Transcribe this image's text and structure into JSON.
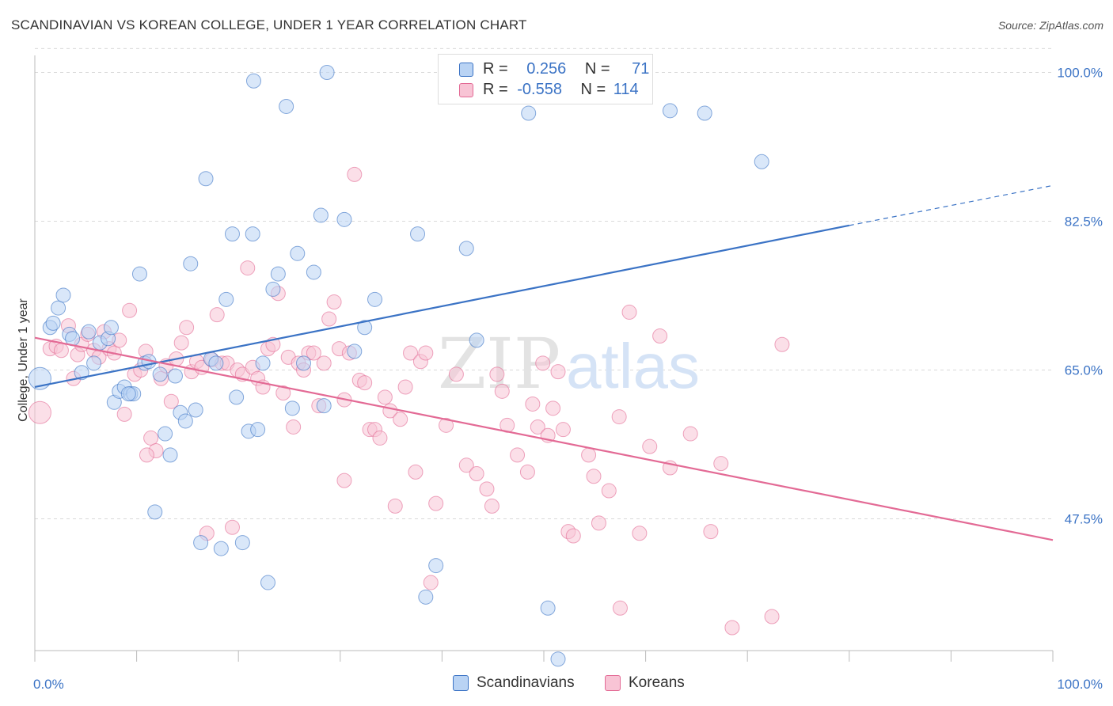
{
  "title": "SCANDINAVIAN VS KOREAN COLLEGE, UNDER 1 YEAR CORRELATION CHART",
  "source": "Source: ZipAtlas.com",
  "watermark": {
    "zip": "ZIP",
    "atlas": "atlas"
  },
  "colors": {
    "blue": "#3b73c5",
    "blue_fill": "#b9d3f4",
    "pink": "#e36a95",
    "pink_fill": "#f8c4d5",
    "grid": "#d9d9d9"
  },
  "legend": {
    "rows": [
      {
        "r_label": "R =",
        "r_value": "0.256",
        "n_label": "N =",
        "n_value": "71"
      },
      {
        "r_label": "R =",
        "r_value": "-0.558",
        "n_label": "N =",
        "n_value": "114"
      }
    ]
  },
  "bottom_legend": {
    "scandinavians": "Scandinavians",
    "koreans": "Koreans"
  },
  "chart_data": {
    "type": "scatter",
    "title": "SCANDINAVIAN VS KOREAN COLLEGE, UNDER 1 YEAR CORRELATION CHART",
    "xlabel": "",
    "ylabel": "College, Under 1 year",
    "xlim": [
      0,
      100
    ],
    "ylim": [
      32,
      102
    ],
    "x_tick_labels": [
      "0.0%",
      "100.0%"
    ],
    "y_ticks": [
      47.5,
      65.0,
      82.5,
      100.0
    ],
    "y_tick_labels": [
      "47.5%",
      "65.0%",
      "82.5%",
      "100.0%"
    ],
    "grid": true,
    "legend_position": "top-center",
    "series": [
      {
        "name": "Scandinavians",
        "r": 0.256,
        "n": 71,
        "trend": {
          "x": [
            0,
            80
          ],
          "y": [
            63.0,
            82.0
          ],
          "dashed_extension": {
            "x": [
              80,
              100
            ],
            "y": [
              82.0,
              86.7
            ]
          }
        },
        "points": [
          [
            0.5,
            64.0
          ],
          [
            1.5,
            70.0
          ],
          [
            1.8,
            70.5
          ],
          [
            2.3,
            72.3
          ],
          [
            2.8,
            73.8
          ],
          [
            3.4,
            69.2
          ],
          [
            3.7,
            68.7
          ],
          [
            4.6,
            64.7
          ],
          [
            5.3,
            69.5
          ],
          [
            5.8,
            65.8
          ],
          [
            6.4,
            68.2
          ],
          [
            7.2,
            68.7
          ],
          [
            7.5,
            70.0
          ],
          [
            7.8,
            61.2
          ],
          [
            8.3,
            62.5
          ],
          [
            8.8,
            63.0
          ],
          [
            9.4,
            62.2
          ],
          [
            9.7,
            62.2
          ],
          [
            10.3,
            76.3
          ],
          [
            10.8,
            65.8
          ],
          [
            11.2,
            66.0
          ],
          [
            12.3,
            64.5
          ],
          [
            12.8,
            57.5
          ],
          [
            13.3,
            55.0
          ],
          [
            13.8,
            64.3
          ],
          [
            14.3,
            60.0
          ],
          [
            14.8,
            59.0
          ],
          [
            15.3,
            77.5
          ],
          [
            15.8,
            60.3
          ],
          [
            16.8,
            87.5
          ],
          [
            17.3,
            66.3
          ],
          [
            17.8,
            65.8
          ],
          [
            18.8,
            73.3
          ],
          [
            19.4,
            81.0
          ],
          [
            19.8,
            61.8
          ],
          [
            20.4,
            44.7
          ],
          [
            21.0,
            57.8
          ],
          [
            21.4,
            81.0
          ],
          [
            21.9,
            58.0
          ],
          [
            22.4,
            65.8
          ],
          [
            22.9,
            40.0
          ],
          [
            23.4,
            74.5
          ],
          [
            23.9,
            76.3
          ],
          [
            24.7,
            96.0
          ],
          [
            25.8,
            78.7
          ],
          [
            25.3,
            60.5
          ],
          [
            26.4,
            65.8
          ],
          [
            27.4,
            76.5
          ],
          [
            28.1,
            83.2
          ],
          [
            28.7,
            100.0
          ],
          [
            28.4,
            60.8
          ],
          [
            30.4,
            82.7
          ],
          [
            31.4,
            67.2
          ],
          [
            32.4,
            70.0
          ],
          [
            33.4,
            73.3
          ],
          [
            37.6,
            81.0
          ],
          [
            38.4,
            38.3
          ],
          [
            39.4,
            42.0
          ],
          [
            42.4,
            79.3
          ],
          [
            43.4,
            68.5
          ],
          [
            47.4,
            100.0
          ],
          [
            48.5,
            95.2
          ],
          [
            50.4,
            37.0
          ],
          [
            51.4,
            31.0
          ],
          [
            62.4,
            95.5
          ],
          [
            65.8,
            95.2
          ],
          [
            71.4,
            89.5
          ],
          [
            11.8,
            48.3
          ],
          [
            16.3,
            44.7
          ],
          [
            18.3,
            44.0
          ],
          [
            21.5,
            99.0
          ],
          [
            9.2,
            62.2
          ]
        ]
      },
      {
        "name": "Koreans",
        "r": -0.558,
        "n": 114,
        "trend": {
          "x": [
            0,
            100
          ],
          "y": [
            68.8,
            45.0
          ]
        },
        "points": [
          [
            0.5,
            60.0
          ],
          [
            1.5,
            67.5
          ],
          [
            2.1,
            67.8
          ],
          [
            2.6,
            67.3
          ],
          [
            3.3,
            70.2
          ],
          [
            3.8,
            64.0
          ],
          [
            4.2,
            66.8
          ],
          [
            4.6,
            68.0
          ],
          [
            5.2,
            69.2
          ],
          [
            5.8,
            67.3
          ],
          [
            6.3,
            66.5
          ],
          [
            6.8,
            69.5
          ],
          [
            7.3,
            67.5
          ],
          [
            7.8,
            67.0
          ],
          [
            8.3,
            68.5
          ],
          [
            8.8,
            59.8
          ],
          [
            9.3,
            72.0
          ],
          [
            9.8,
            64.5
          ],
          [
            10.4,
            65.0
          ],
          [
            10.9,
            67.2
          ],
          [
            11.4,
            57.0
          ],
          [
            11.9,
            55.5
          ],
          [
            12.4,
            64.0
          ],
          [
            12.9,
            65.5
          ],
          [
            13.4,
            61.3
          ],
          [
            13.9,
            66.3
          ],
          [
            14.4,
            68.2
          ],
          [
            14.9,
            70.0
          ],
          [
            15.4,
            64.8
          ],
          [
            15.9,
            66.0
          ],
          [
            16.4,
            65.3
          ],
          [
            16.9,
            45.8
          ],
          [
            17.4,
            66.2
          ],
          [
            17.9,
            71.5
          ],
          [
            18.4,
            65.8
          ],
          [
            18.9,
            65.8
          ],
          [
            19.4,
            46.5
          ],
          [
            19.9,
            65.0
          ],
          [
            20.4,
            64.5
          ],
          [
            20.9,
            77.0
          ],
          [
            21.4,
            65.3
          ],
          [
            21.9,
            64.0
          ],
          [
            22.4,
            63.0
          ],
          [
            22.9,
            67.5
          ],
          [
            23.4,
            68.0
          ],
          [
            23.9,
            74.0
          ],
          [
            24.4,
            62.3
          ],
          [
            24.9,
            66.5
          ],
          [
            25.4,
            58.3
          ],
          [
            25.9,
            65.8
          ],
          [
            26.4,
            65.0
          ],
          [
            26.9,
            67.0
          ],
          [
            27.4,
            67.0
          ],
          [
            27.9,
            60.8
          ],
          [
            28.4,
            65.8
          ],
          [
            28.9,
            71.0
          ],
          [
            29.4,
            73.0
          ],
          [
            29.9,
            67.5
          ],
          [
            30.4,
            61.5
          ],
          [
            30.9,
            67.0
          ],
          [
            31.4,
            88.0
          ],
          [
            31.9,
            63.8
          ],
          [
            32.4,
            63.5
          ],
          [
            32.9,
            58.0
          ],
          [
            33.4,
            58.0
          ],
          [
            33.9,
            57.0
          ],
          [
            34.4,
            61.8
          ],
          [
            34.9,
            60.2
          ],
          [
            35.4,
            49.0
          ],
          [
            35.9,
            59.2
          ],
          [
            36.4,
            63.0
          ],
          [
            36.9,
            67.0
          ],
          [
            37.4,
            53.0
          ],
          [
            37.9,
            66.0
          ],
          [
            38.4,
            67.0
          ],
          [
            38.9,
            40.0
          ],
          [
            39.4,
            49.3
          ],
          [
            40.4,
            58.5
          ],
          [
            41.4,
            64.5
          ],
          [
            42.4,
            53.8
          ],
          [
            43.4,
            52.8
          ],
          [
            44.4,
            51.0
          ],
          [
            44.9,
            49.0
          ],
          [
            45.4,
            64.5
          ],
          [
            45.9,
            62.5
          ],
          [
            46.4,
            58.5
          ],
          [
            47.4,
            55.0
          ],
          [
            48.4,
            53.0
          ],
          [
            48.9,
            61.0
          ],
          [
            49.4,
            58.3
          ],
          [
            49.9,
            65.8
          ],
          [
            50.4,
            57.3
          ],
          [
            50.9,
            60.5
          ],
          [
            51.4,
            64.8
          ],
          [
            51.9,
            58.0
          ],
          [
            52.4,
            46.0
          ],
          [
            52.9,
            45.5
          ],
          [
            54.4,
            55.0
          ],
          [
            54.9,
            52.5
          ],
          [
            55.4,
            47.0
          ],
          [
            56.4,
            50.8
          ],
          [
            57.4,
            59.5
          ],
          [
            58.4,
            71.8
          ],
          [
            59.4,
            45.8
          ],
          [
            60.4,
            56.0
          ],
          [
            61.4,
            69.0
          ],
          [
            62.4,
            53.5
          ],
          [
            64.4,
            57.5
          ],
          [
            66.4,
            46.0
          ],
          [
            67.4,
            54.0
          ],
          [
            72.4,
            36.0
          ],
          [
            73.4,
            68.0
          ],
          [
            11.0,
            55.0
          ],
          [
            30.4,
            52.0
          ],
          [
            68.5,
            34.7
          ],
          [
            57.5,
            37.0
          ]
        ]
      }
    ]
  }
}
